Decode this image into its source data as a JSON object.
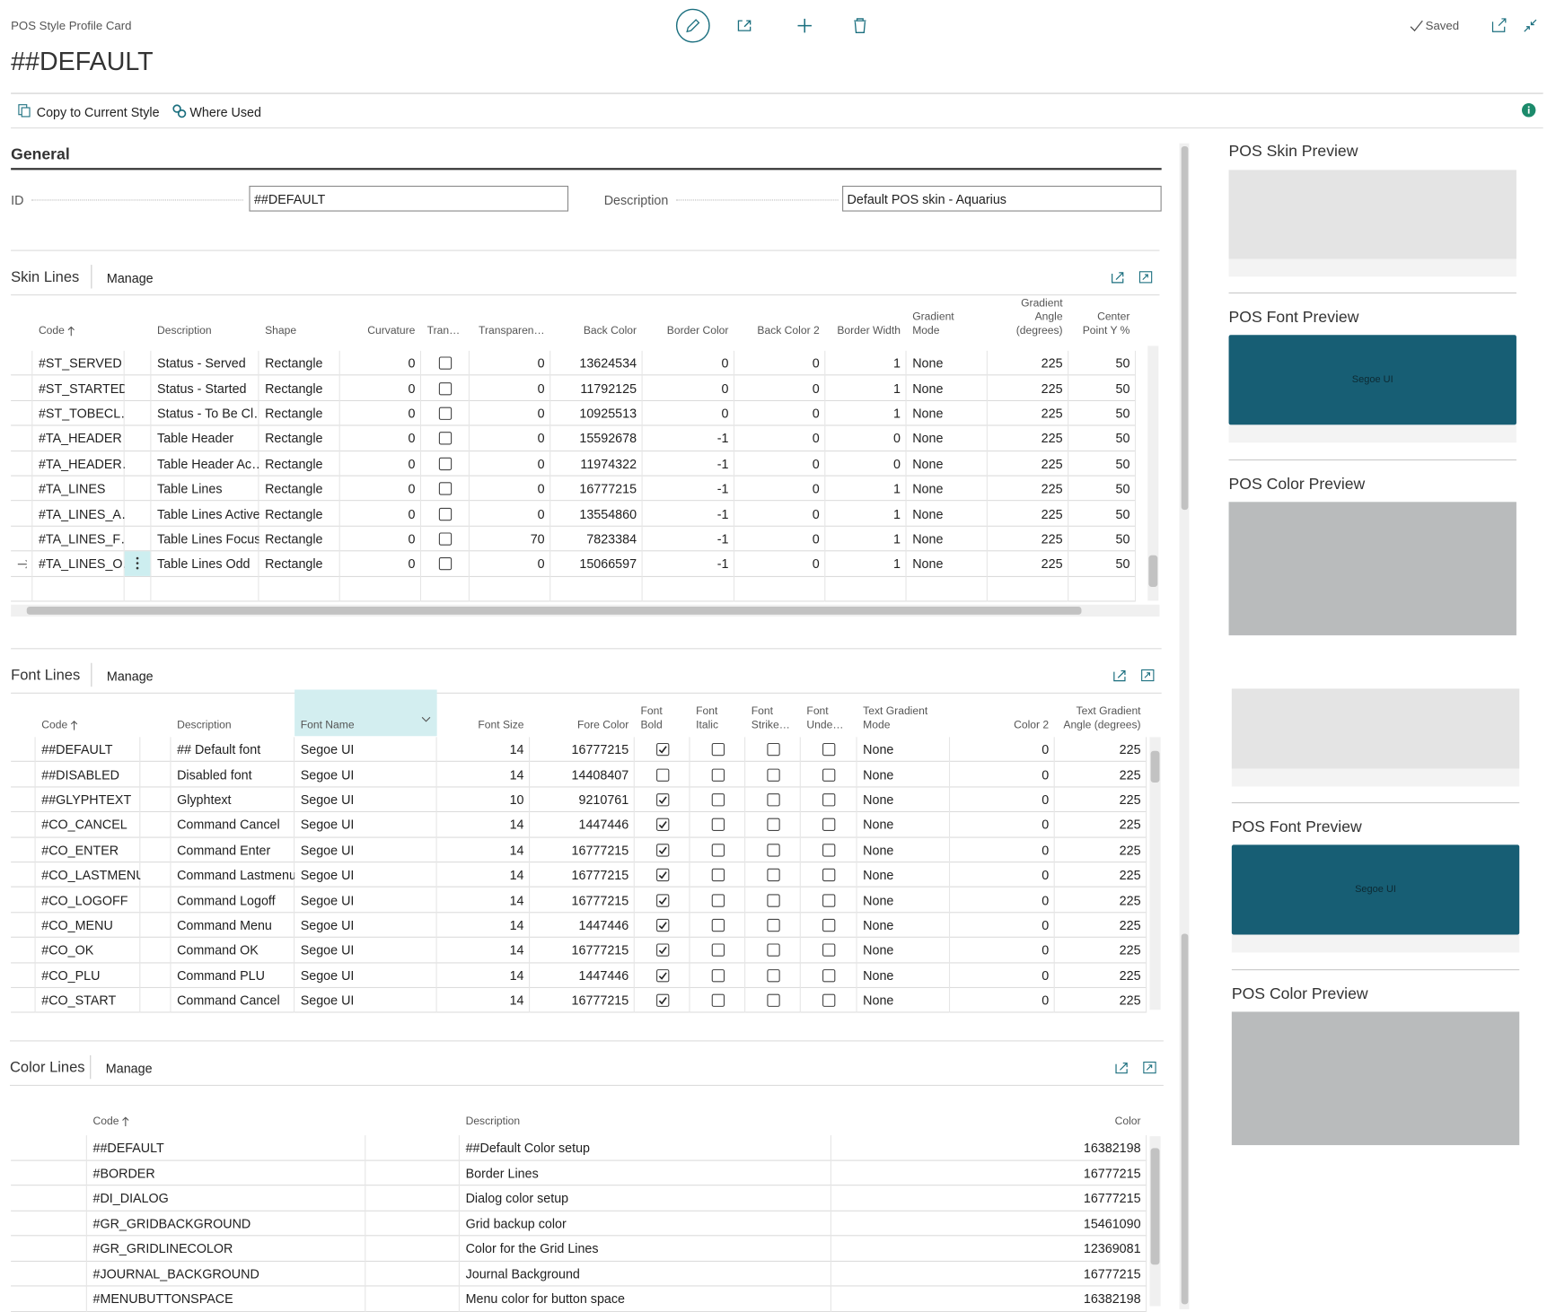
{
  "header": {
    "breadcrumb": "POS Style Profile Card",
    "title": "##DEFAULT",
    "status": "Saved"
  },
  "actions": [
    "Copy to Current Style",
    "Where Used"
  ],
  "general": {
    "title": "General",
    "fields": [
      {
        "label": "ID",
        "value": "##DEFAULT"
      },
      {
        "label": "Description",
        "value": "Default POS skin - Aquarius"
      }
    ]
  },
  "skin_lines": {
    "title": "Skin Lines",
    "manage": "Manage",
    "columns": [
      "Code",
      "Description",
      "Shape",
      "Curvature",
      "Tran…",
      "Transparen…",
      "Back Color",
      "Border Color",
      "Back Color 2",
      "Border Width",
      "Gradient Mode",
      "Gradient Angle (degrees)",
      "Center Point Y %"
    ],
    "rows": [
      [
        "#ST_SERVED",
        "Status - Served",
        "Rectangle",
        0,
        false,
        0,
        13624534,
        0,
        0,
        1,
        "None",
        225,
        50
      ],
      [
        "#ST_STARTED",
        "Status - Started",
        "Rectangle",
        0,
        false,
        0,
        11792125,
        0,
        0,
        1,
        "None",
        225,
        50
      ],
      [
        "#ST_TOBECL…",
        "Status - To Be Cl…",
        "Rectangle",
        0,
        false,
        0,
        10925513,
        0,
        0,
        1,
        "None",
        225,
        50
      ],
      [
        "#TA_HEADER",
        "Table Header",
        "Rectangle",
        0,
        false,
        0,
        15592678,
        -1,
        0,
        0,
        "None",
        225,
        50
      ],
      [
        "#TA_HEADER…",
        "Table Header Ac…",
        "Rectangle",
        0,
        false,
        0,
        11974322,
        -1,
        0,
        0,
        "None",
        225,
        50
      ],
      [
        "#TA_LINES",
        "Table Lines",
        "Rectangle",
        0,
        false,
        0,
        16777215,
        -1,
        0,
        1,
        "None",
        225,
        50
      ],
      [
        "#TA_LINES_A…",
        "Table Lines Active",
        "Rectangle",
        0,
        false,
        0,
        13554860,
        -1,
        0,
        1,
        "None",
        225,
        50
      ],
      [
        "#TA_LINES_F…",
        "Table Lines Focus",
        "Rectangle",
        0,
        false,
        70,
        7823384,
        -1,
        0,
        1,
        "None",
        225,
        50
      ],
      [
        "#TA_LINES_O…",
        "Table Lines Odd",
        "Rectangle",
        0,
        false,
        0,
        15066597,
        -1,
        0,
        1,
        "None",
        225,
        50
      ]
    ]
  },
  "font_lines": {
    "title": "Font Lines",
    "manage": "Manage",
    "columns": [
      "Code",
      "Description",
      "Font Name",
      "Font Size",
      "Fore Color",
      "Font Bold",
      "Font Italic",
      "Font Strike…",
      "Font Unde…",
      "Text Gradient Mode",
      "Color 2",
      "Text Gradient Angle (degrees)"
    ],
    "rows": [
      [
        "##DEFAULT",
        "## Default font",
        "Segoe UI",
        14,
        16777215,
        true,
        false,
        false,
        false,
        "None",
        0,
        225
      ],
      [
        "##DISABLED",
        "Disabled font",
        "Segoe UI",
        14,
        14408407,
        false,
        false,
        false,
        false,
        "None",
        0,
        225
      ],
      [
        "##GLYPHTEXT",
        "Glyphtext",
        "Segoe UI",
        10,
        9210761,
        true,
        false,
        false,
        false,
        "None",
        0,
        225
      ],
      [
        "#CO_CANCEL",
        "Command Cancel",
        "Segoe UI",
        14,
        1447446,
        true,
        false,
        false,
        false,
        "None",
        0,
        225
      ],
      [
        "#CO_ENTER",
        "Command Enter",
        "Segoe UI",
        14,
        16777215,
        true,
        false,
        false,
        false,
        "None",
        0,
        225
      ],
      [
        "#CO_LASTMENU",
        "Command Lastmenu",
        "Segoe UI",
        14,
        16777215,
        true,
        false,
        false,
        false,
        "None",
        0,
        225
      ],
      [
        "#CO_LOGOFF",
        "Command Logoff",
        "Segoe UI",
        14,
        16777215,
        true,
        false,
        false,
        false,
        "None",
        0,
        225
      ],
      [
        "#CO_MENU",
        "Command Menu",
        "Segoe UI",
        14,
        1447446,
        true,
        false,
        false,
        false,
        "None",
        0,
        225
      ],
      [
        "#CO_OK",
        "Command OK",
        "Segoe UI",
        14,
        16777215,
        true,
        false,
        false,
        false,
        "None",
        0,
        225
      ],
      [
        "#CO_PLU",
        "Command PLU",
        "Segoe UI",
        14,
        1447446,
        true,
        false,
        false,
        false,
        "None",
        0,
        225
      ],
      [
        "#CO_START",
        "Command Cancel",
        "Segoe UI",
        14,
        16777215,
        true,
        false,
        false,
        false,
        "None",
        0,
        225
      ]
    ]
  },
  "color_lines": {
    "title": "Color Lines",
    "manage": "Manage",
    "columns": [
      "Code",
      "Description",
      "Color"
    ],
    "rows": [
      [
        "##DEFAULT",
        "##Default Color setup",
        16382198
      ],
      [
        "#BORDER",
        "Border Lines",
        16777215
      ],
      [
        "#DI_DIALOG",
        "Dialog color setup",
        16777215
      ],
      [
        "#GR_GRIDBACKGROUND",
        "Grid backup color",
        15461090
      ],
      [
        "#GR_GRIDLINECOLOR",
        "Color for the Grid Lines",
        12369081
      ],
      [
        "#JOURNAL_BACKGROUND",
        "Journal Background",
        16777215
      ],
      [
        "#MENUBUTTONSPACE",
        "Menu color for button space",
        16382198
      ]
    ]
  },
  "previews": [
    {
      "skin": "POS Skin Preview",
      "font": "POS Font Preview",
      "font_sample": "Segoe UI",
      "color": "POS Color Preview"
    },
    {
      "font": "POS Font Preview",
      "font_sample": "Segoe UI",
      "color": "POS Color Preview"
    }
  ]
}
